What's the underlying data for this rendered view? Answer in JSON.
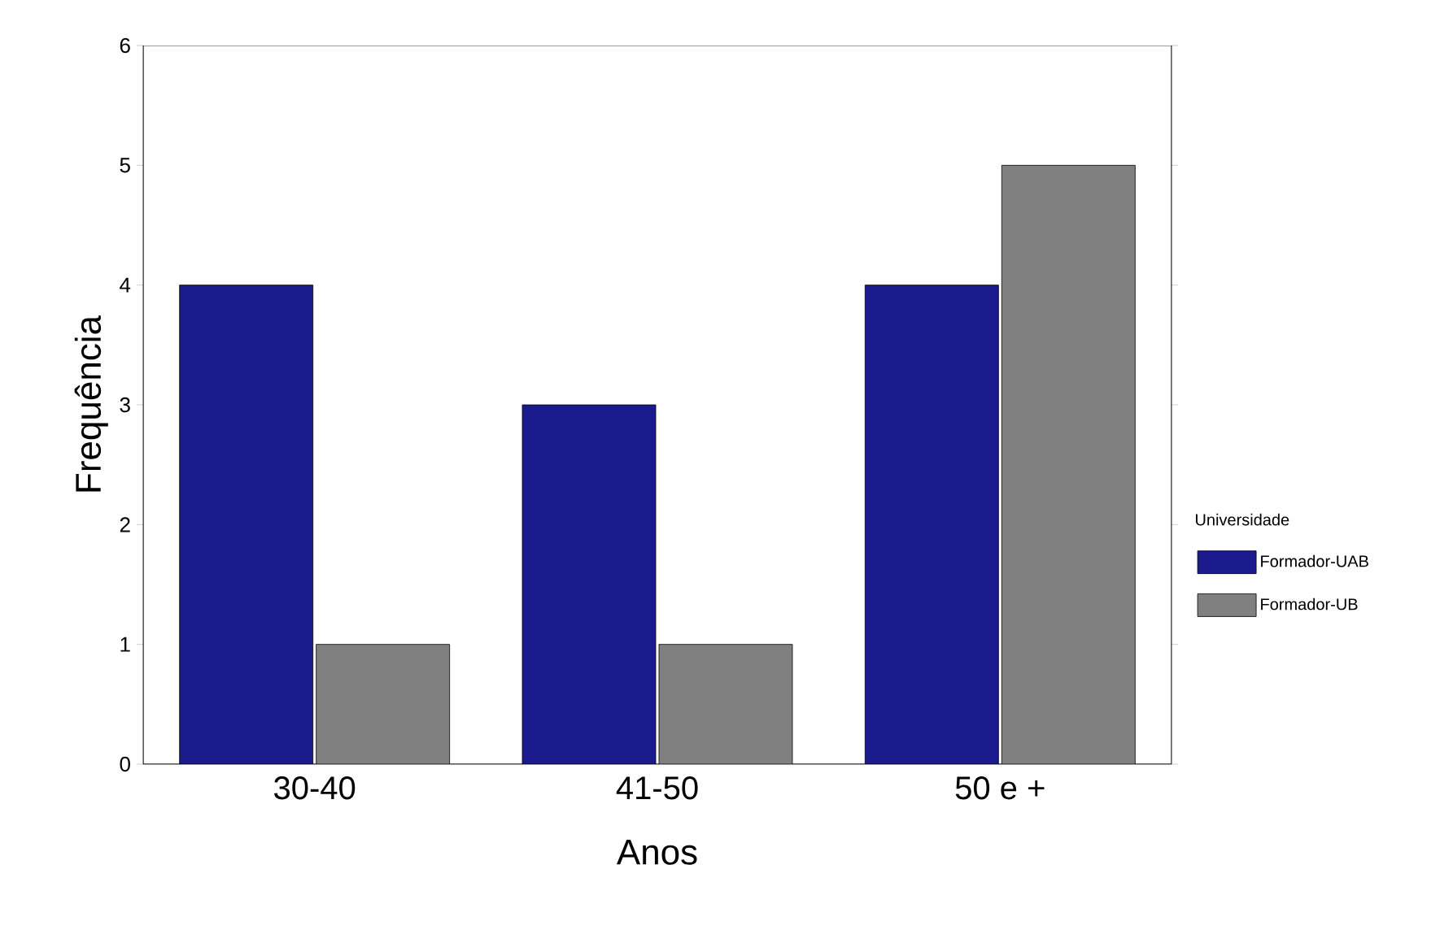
{
  "chart_data": {
    "type": "bar",
    "xlabel": "Anos",
    "ylabel": "Frequência",
    "legend_title": "Universidade",
    "categories": [
      "30-40",
      "41-50",
      "50 e +"
    ],
    "series": [
      {
        "name": "Formador-UAB",
        "color": "#1a1a8c",
        "values": [
          4,
          3,
          4
        ]
      },
      {
        "name": "Formador-UB",
        "color": "#808080",
        "values": [
          1,
          1,
          5
        ]
      }
    ],
    "ylim": [
      0,
      6
    ],
    "yticks": [
      0,
      1,
      2,
      3,
      4,
      5,
      6
    ],
    "legend": "right"
  }
}
